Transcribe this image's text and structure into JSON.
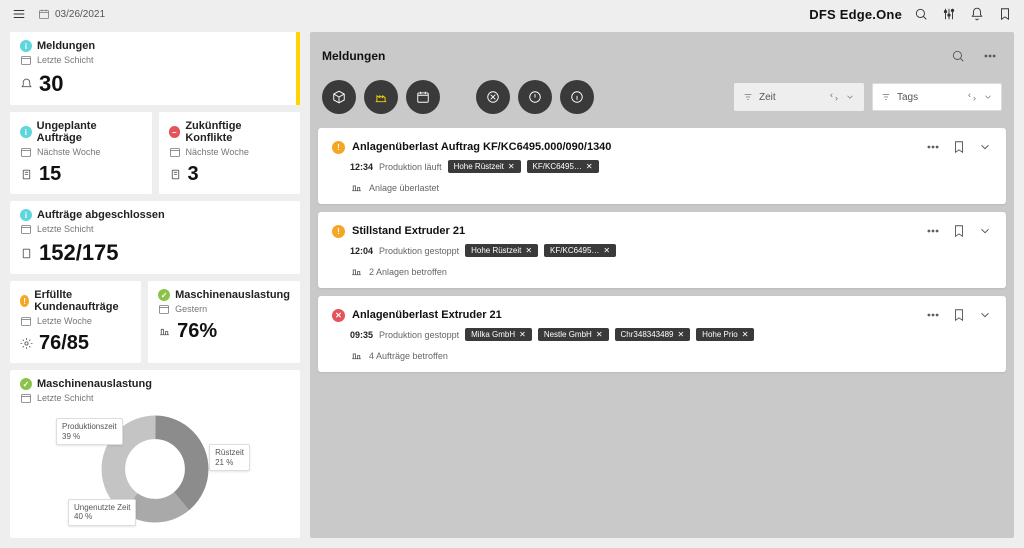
{
  "topbar": {
    "date": "03/26/2021",
    "brand_prefix": "DFS",
    "brand_name": "Edge.One"
  },
  "sidebar": {
    "card_meldungen": {
      "title": "Meldungen",
      "subtitle": "Letzte Schicht",
      "value": "30"
    },
    "card_ungeplante": {
      "title": "Ungeplante Aufträge",
      "subtitle": "Nächste Woche",
      "value": "15"
    },
    "card_konflikte": {
      "title": "Zukünftige Konflikte",
      "subtitle": "Nächste Woche",
      "value": "3"
    },
    "card_abgeschlossen": {
      "title": "Aufträge abgeschlossen",
      "subtitle": "Letzte Schicht",
      "value": "152/175"
    },
    "card_erfuellt": {
      "title": "Erfüllte Kundenaufträge",
      "subtitle": "Letzte Woche",
      "value": "76/85"
    },
    "card_auslastung1": {
      "title": "Maschinenauslastung",
      "subtitle": "Gestern",
      "value": "76%"
    },
    "card_auslastung2": {
      "title": "Maschinenauslastung",
      "subtitle": "Letzte Schicht",
      "donut": {
        "segments": [
          {
            "label": "Produktionszeit",
            "pct": 39,
            "color": "#8c8c8c"
          },
          {
            "label": "Rüstzeit",
            "pct": 21,
            "color": "#a9a9a9"
          },
          {
            "label": "Ungenutzte Zeit",
            "pct": 40,
            "color": "#c4c4c4"
          }
        ],
        "label_prod": "Produktionszeit\n39 %",
        "label_ruest": "Rüstzeit\n21 %",
        "label_unused": "Ungenutzte Zeit\n40 %"
      }
    }
  },
  "panel": {
    "title": "Meldungen",
    "sort_zeit": "Zeit",
    "sort_tags": "Tags"
  },
  "messages": [
    {
      "severity": "warn",
      "title": "Anlagenüberlast Auftrag KF/KC6495.000/090/1340",
      "time": "12:34",
      "status": "Produktion läuft",
      "tags": [
        "Hohe Rüstzeit",
        "KF/KC6495…"
      ],
      "note": "Anlage überlastet"
    },
    {
      "severity": "warn",
      "title": "Stillstand Extruder 21",
      "time": "12:04",
      "status": "Produktion gestoppt",
      "tags": [
        "Hohe Rüstzeit",
        "KF/KC6495…"
      ],
      "note": "2 Anlagen betroffen"
    },
    {
      "severity": "danger",
      "title": "Anlagenüberlast Extruder 21",
      "time": "09:35",
      "status": "Produktion gestoppt",
      "tags": [
        "Milka GmbH",
        "Nestle GmbH",
        "Chr348343489",
        "Hohe Prio"
      ],
      "note": "4 Aufträge betroffen"
    }
  ],
  "colors": {
    "accent": "#ffd400",
    "cyan": "#5fd6db",
    "red": "#e4545b",
    "orange": "#f5a623",
    "green": "#8bc34a",
    "darkchip": "#3a3a3a",
    "panel_bg": "#c9c9c9"
  }
}
